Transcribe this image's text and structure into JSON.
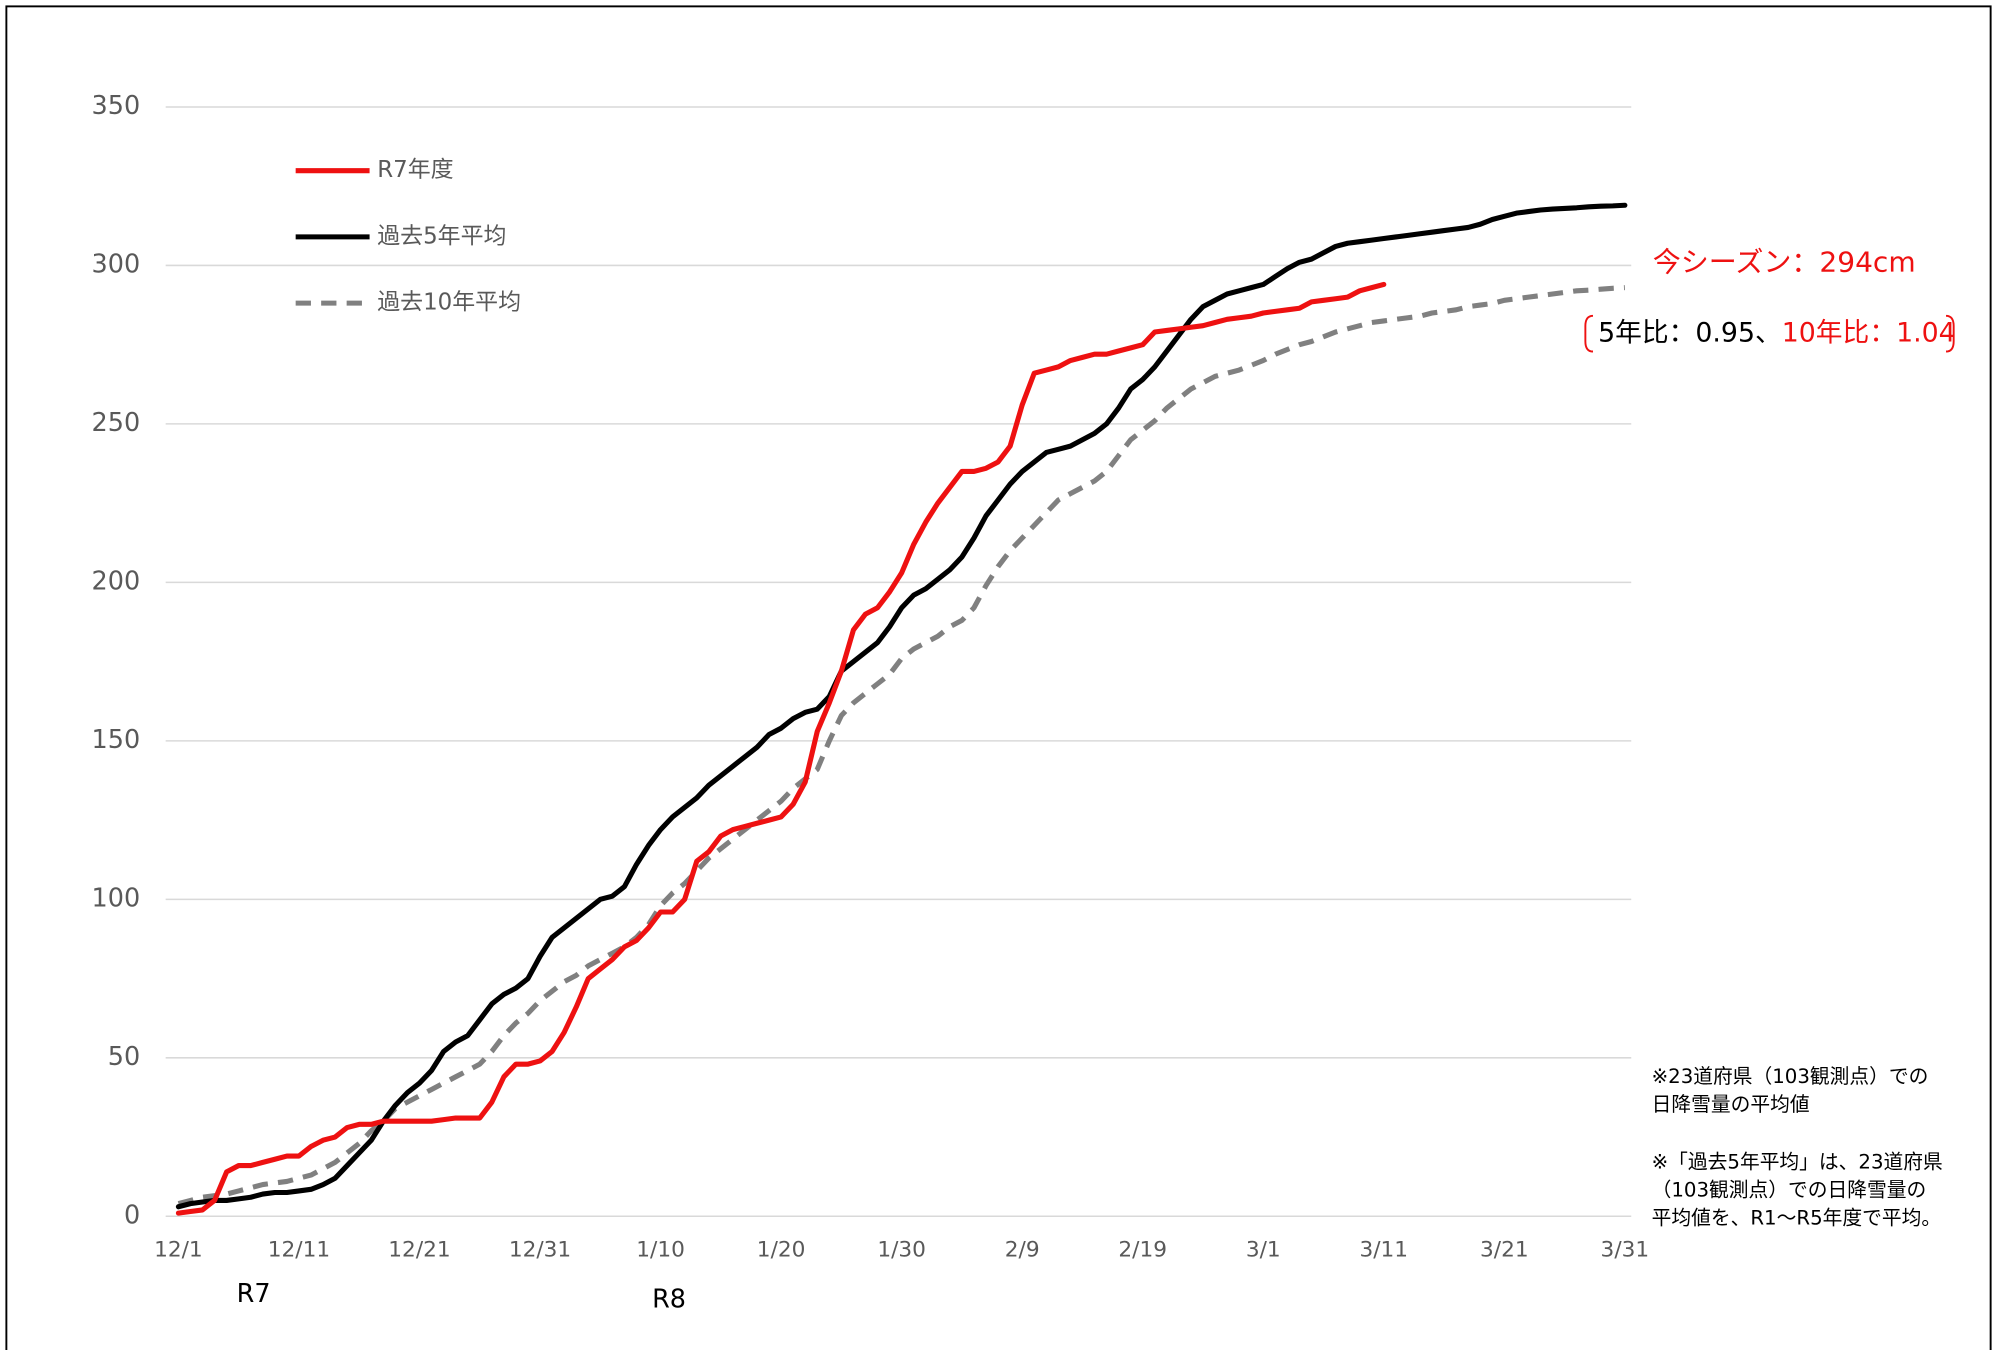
{
  "chart_data": {
    "type": "line",
    "categories": [
      "12/1",
      null,
      null,
      null,
      null,
      null,
      null,
      null,
      null,
      null,
      "12/11",
      null,
      null,
      null,
      null,
      null,
      null,
      null,
      null,
      null,
      "12/21",
      null,
      null,
      null,
      null,
      null,
      null,
      null,
      null,
      null,
      "12/31",
      null,
      null,
      null,
      null,
      null,
      null,
      null,
      null,
      null,
      "1/10",
      null,
      null,
      null,
      null,
      null,
      null,
      null,
      null,
      null,
      "1/20",
      null,
      null,
      null,
      null,
      null,
      null,
      null,
      null,
      null,
      "1/30",
      null,
      null,
      null,
      null,
      null,
      null,
      null,
      null,
      null,
      "2/9",
      null,
      null,
      null,
      null,
      null,
      null,
      null,
      null,
      null,
      "2/19",
      null,
      null,
      null,
      null,
      null,
      null,
      null,
      null,
      null,
      "3/1",
      null,
      null,
      null,
      null,
      null,
      null,
      null,
      null,
      null,
      "3/11",
      null,
      null,
      null,
      null,
      null,
      null,
      null,
      null,
      null,
      "3/21",
      null,
      null,
      null,
      null,
      null,
      null,
      null,
      null,
      null,
      "3/31"
    ],
    "series": [
      {
        "name": "R7年度",
        "color": "#ee1111",
        "line_style": "solid",
        "values": [
          1,
          1.5,
          2,
          5,
          14,
          16,
          16,
          17,
          18,
          19,
          19,
          22,
          24,
          25,
          28,
          29,
          29,
          30,
          30,
          30,
          30,
          30,
          30.5,
          31,
          31,
          31,
          36,
          44,
          48,
          48,
          49,
          52,
          58,
          66,
          75,
          78,
          81,
          85,
          87,
          91,
          96,
          96,
          100,
          112,
          115,
          120,
          122,
          123,
          124,
          125,
          126,
          130,
          137,
          153,
          162,
          172,
          185,
          190,
          192,
          197,
          203,
          212,
          219,
          225,
          230,
          235,
          235,
          236,
          238,
          243,
          256,
          266,
          267,
          268,
          270,
          271,
          272,
          272,
          273,
          274,
          275,
          279,
          279.5,
          280,
          280.5,
          281,
          282,
          283,
          283.5,
          284,
          285,
          285.5,
          286,
          286.5,
          288.5,
          289,
          289.5,
          290,
          292,
          293,
          294,
          null,
          null,
          null,
          null,
          null,
          null,
          null,
          null,
          null,
          null,
          null,
          null,
          null,
          null,
          null,
          null,
          null,
          null,
          null,
          null
        ]
      },
      {
        "name": "過去5年平均",
        "color": "#000000",
        "line_style": "solid",
        "values": [
          3,
          4,
          4.5,
          5,
          5,
          5.5,
          6,
          7,
          7.5,
          7.5,
          8,
          8.5,
          10,
          12,
          16,
          20,
          24,
          30,
          35,
          39,
          42,
          46,
          52,
          55,
          57,
          62,
          67,
          70,
          72,
          75,
          82,
          88,
          91,
          94,
          97,
          100,
          101,
          104,
          111,
          117,
          122,
          126,
          129,
          132,
          136,
          139,
          142,
          145,
          148,
          152,
          154,
          157,
          159,
          160,
          164,
          172,
          175,
          178,
          181,
          186,
          192,
          196,
          198,
          201,
          204,
          208,
          214,
          221,
          226,
          231,
          235,
          238,
          241,
          242,
          243,
          245,
          247,
          250,
          255,
          261,
          264,
          268,
          273,
          278,
          283,
          287,
          289,
          291,
          292,
          293,
          294,
          296.5,
          299,
          301,
          302,
          304,
          306,
          307,
          307.5,
          308,
          308.5,
          309,
          309.5,
          310,
          310.5,
          311,
          311.5,
          312,
          313,
          314.5,
          315.5,
          316.5,
          317,
          317.5,
          317.8,
          318,
          318.2,
          318.5,
          318.7,
          318.8,
          319
        ]
      },
      {
        "name": "過去10年平均",
        "color": "#808080",
        "line_style": "dashed",
        "values": [
          4,
          5,
          6,
          6.5,
          7,
          8,
          9,
          10,
          10.5,
          11,
          12,
          13,
          15,
          17,
          20,
          23,
          27,
          30,
          34,
          36,
          38,
          40,
          42,
          44,
          46,
          48,
          52,
          57,
          61,
          64,
          68,
          71,
          74,
          76,
          79,
          81,
          83,
          85,
          88,
          92,
          98,
          102,
          105,
          109,
          113,
          116,
          119,
          122,
          125,
          128,
          131,
          135,
          138,
          141,
          150,
          158,
          162,
          165,
          168,
          171,
          176,
          179,
          181,
          183,
          186,
          188,
          192,
          199,
          205,
          210,
          214,
          218,
          222,
          226,
          228,
          230,
          232,
          235,
          240,
          245,
          248,
          251,
          255,
          258,
          261,
          263,
          265,
          266,
          267,
          268.5,
          270,
          272,
          273.5,
          275,
          276,
          277.5,
          279,
          280,
          281,
          282,
          282.5,
          283,
          283.5,
          284,
          285,
          285.5,
          286,
          287,
          287.5,
          288,
          289,
          289.5,
          290,
          290.5,
          291,
          291.5,
          292,
          292.2,
          292.5,
          292.8,
          293
        ]
      }
    ],
    "ylim": [
      0,
      350
    ],
    "yticks": [
      0,
      50,
      100,
      150,
      200,
      250,
      300,
      350
    ],
    "grid": true,
    "legend": "upper left",
    "era_labels": [
      "R7",
      "R8"
    ],
    "season_total": "今シーズン：294cm",
    "ratio_5yr": "5年比：0.95、",
    "ratio_10yr": "10年比：1.04",
    "highlight_color": "#ee1111",
    "notes": [
      "※23道府県（103観測点）での",
      "日降雪量の平均値",
      "※「過去5年平均」は、23道府県",
      "（103観測点）での日降雪量の",
      "平均値を、R1～R5年度で平均。"
    ]
  }
}
